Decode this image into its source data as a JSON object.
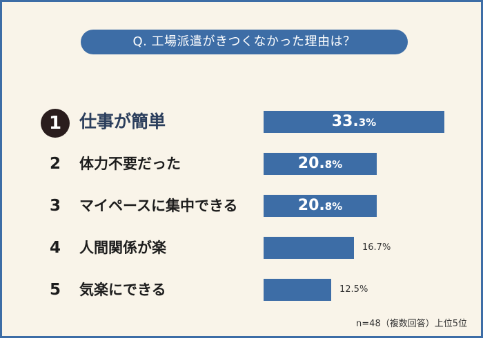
{
  "question": "Q. 工場派遣がきつくなかった理由は？",
  "note": "n=48（複数回答）上位5位",
  "chart_data": {
    "type": "bar",
    "orientation": "horizontal",
    "title": "Q. 工場派遣がきつくなかった理由は？",
    "unit": "%",
    "xlim": [
      0,
      33.3
    ],
    "categories": [
      "仕事が簡単",
      "体力不要だった",
      "マイペースに集中できる",
      "人間関係が楽",
      "気楽にできる"
    ],
    "ranks": [
      "1",
      "2",
      "3",
      "4",
      "5"
    ],
    "values": [
      33.3,
      20.8,
      20.8,
      16.7,
      12.5
    ],
    "value_labels": [
      {
        "int": "33.",
        "dec": "3%"
      },
      {
        "int": "20.",
        "dec": "8%"
      },
      {
        "int": "20.",
        "dec": "8%"
      },
      {
        "text": "16.7%"
      },
      {
        "text": "12.5%"
      }
    ],
    "colors": {
      "bar": "#3d6da6",
      "background": "#f9f4e9",
      "rank_badge": "#2a1d1d"
    }
  }
}
